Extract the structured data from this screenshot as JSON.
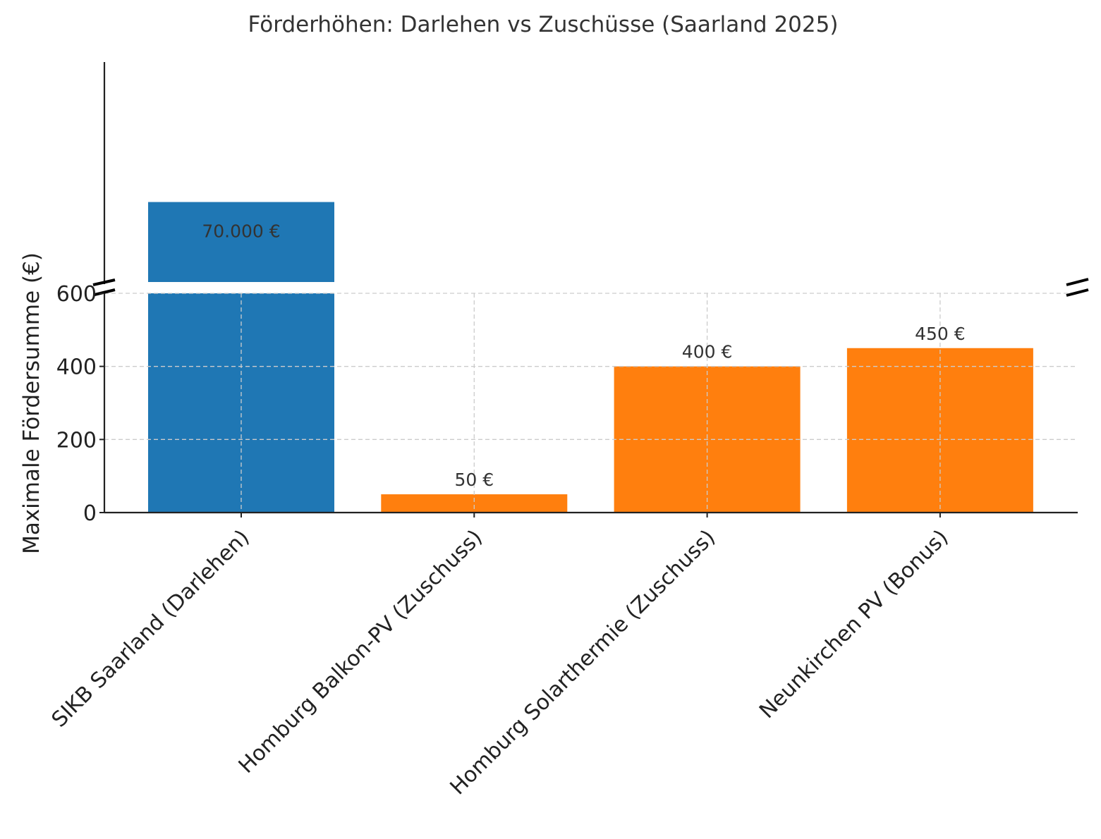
{
  "chart_data": {
    "type": "bar",
    "title": "Förderhöhen: Darlehen vs Zuschüsse (Saarland 2025)",
    "xlabel": "",
    "ylabel": "Maximale Fördersumme (€)",
    "categories": [
      "SIKB Saarland (Darlehen)",
      "Homburg Balkon-PV (Zuschuss)",
      "Homburg Solarthermie (Zuschuss)",
      "Neunkirchen PV (Bonus)"
    ],
    "values": [
      70000,
      50,
      400,
      450
    ],
    "data_labels": [
      "70.000 €",
      "50 €",
      "400 €",
      "450 €"
    ],
    "colors": [
      "#1f77b4",
      "#ff7f0e",
      "#ff7f0e",
      "#ff7f0e"
    ],
    "broken_axis": true,
    "ylim_lower": [
      0,
      600
    ],
    "ylim_upper": [
      60000,
      87500
    ],
    "yticks": [
      0,
      200,
      400,
      600
    ],
    "ytick_labels": [
      "0",
      "200",
      "400",
      "600"
    ],
    "grid": true,
    "legend": "none"
  }
}
